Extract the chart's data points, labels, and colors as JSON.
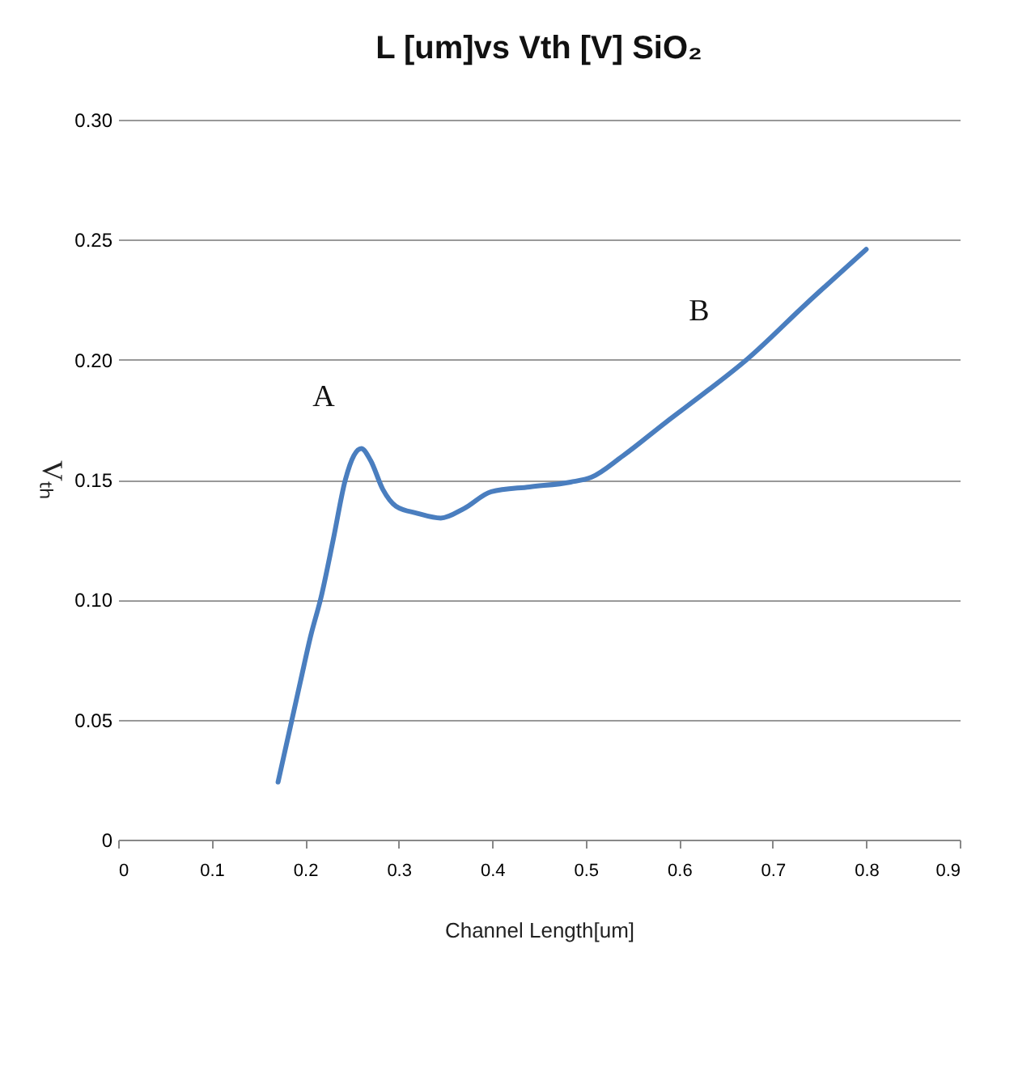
{
  "chart_data": {
    "type": "line",
    "title": "L [um]vs Vth [V] SiO₂",
    "xlabel": "Channel Length[um]",
    "ylabel": "Vₜₕ",
    "x": [
      0.171,
      0.183,
      0.195,
      0.206,
      0.217,
      0.23,
      0.243,
      0.252,
      0.26,
      0.27,
      0.283,
      0.297,
      0.32,
      0.345,
      0.37,
      0.399,
      0.44,
      0.484,
      0.506,
      0.54,
      0.586,
      0.63,
      0.672,
      0.735,
      0.8
    ],
    "series": [
      {
        "color": "#4a7ebf",
        "values": [
          0.024,
          0.045,
          0.066,
          0.085,
          0.101,
          0.125,
          0.15,
          0.16,
          0.163,
          0.158,
          0.146,
          0.139,
          0.136,
          0.134,
          0.138,
          0.145,
          0.147,
          0.149,
          0.151,
          0.16,
          0.174,
          0.187,
          0.2,
          0.223,
          0.246
        ]
      }
    ],
    "xlim": [
      0,
      0.9
    ],
    "ylim": [
      0,
      0.3
    ],
    "xticks": [
      0,
      0.1,
      0.2,
      0.3,
      0.4,
      0.5,
      0.6,
      0.7,
      0.8,
      0.9
    ],
    "yticks": [
      0,
      0.05,
      {
        "value": 0.1,
        "label": "0.10"
      },
      0.15,
      {
        "value": 0.2,
        "label": "0.20"
      },
      0.25,
      {
        "value": 0.3,
        "label": "0.30"
      }
    ],
    "grid": "y",
    "annotations": [
      "A",
      "B"
    ]
  }
}
